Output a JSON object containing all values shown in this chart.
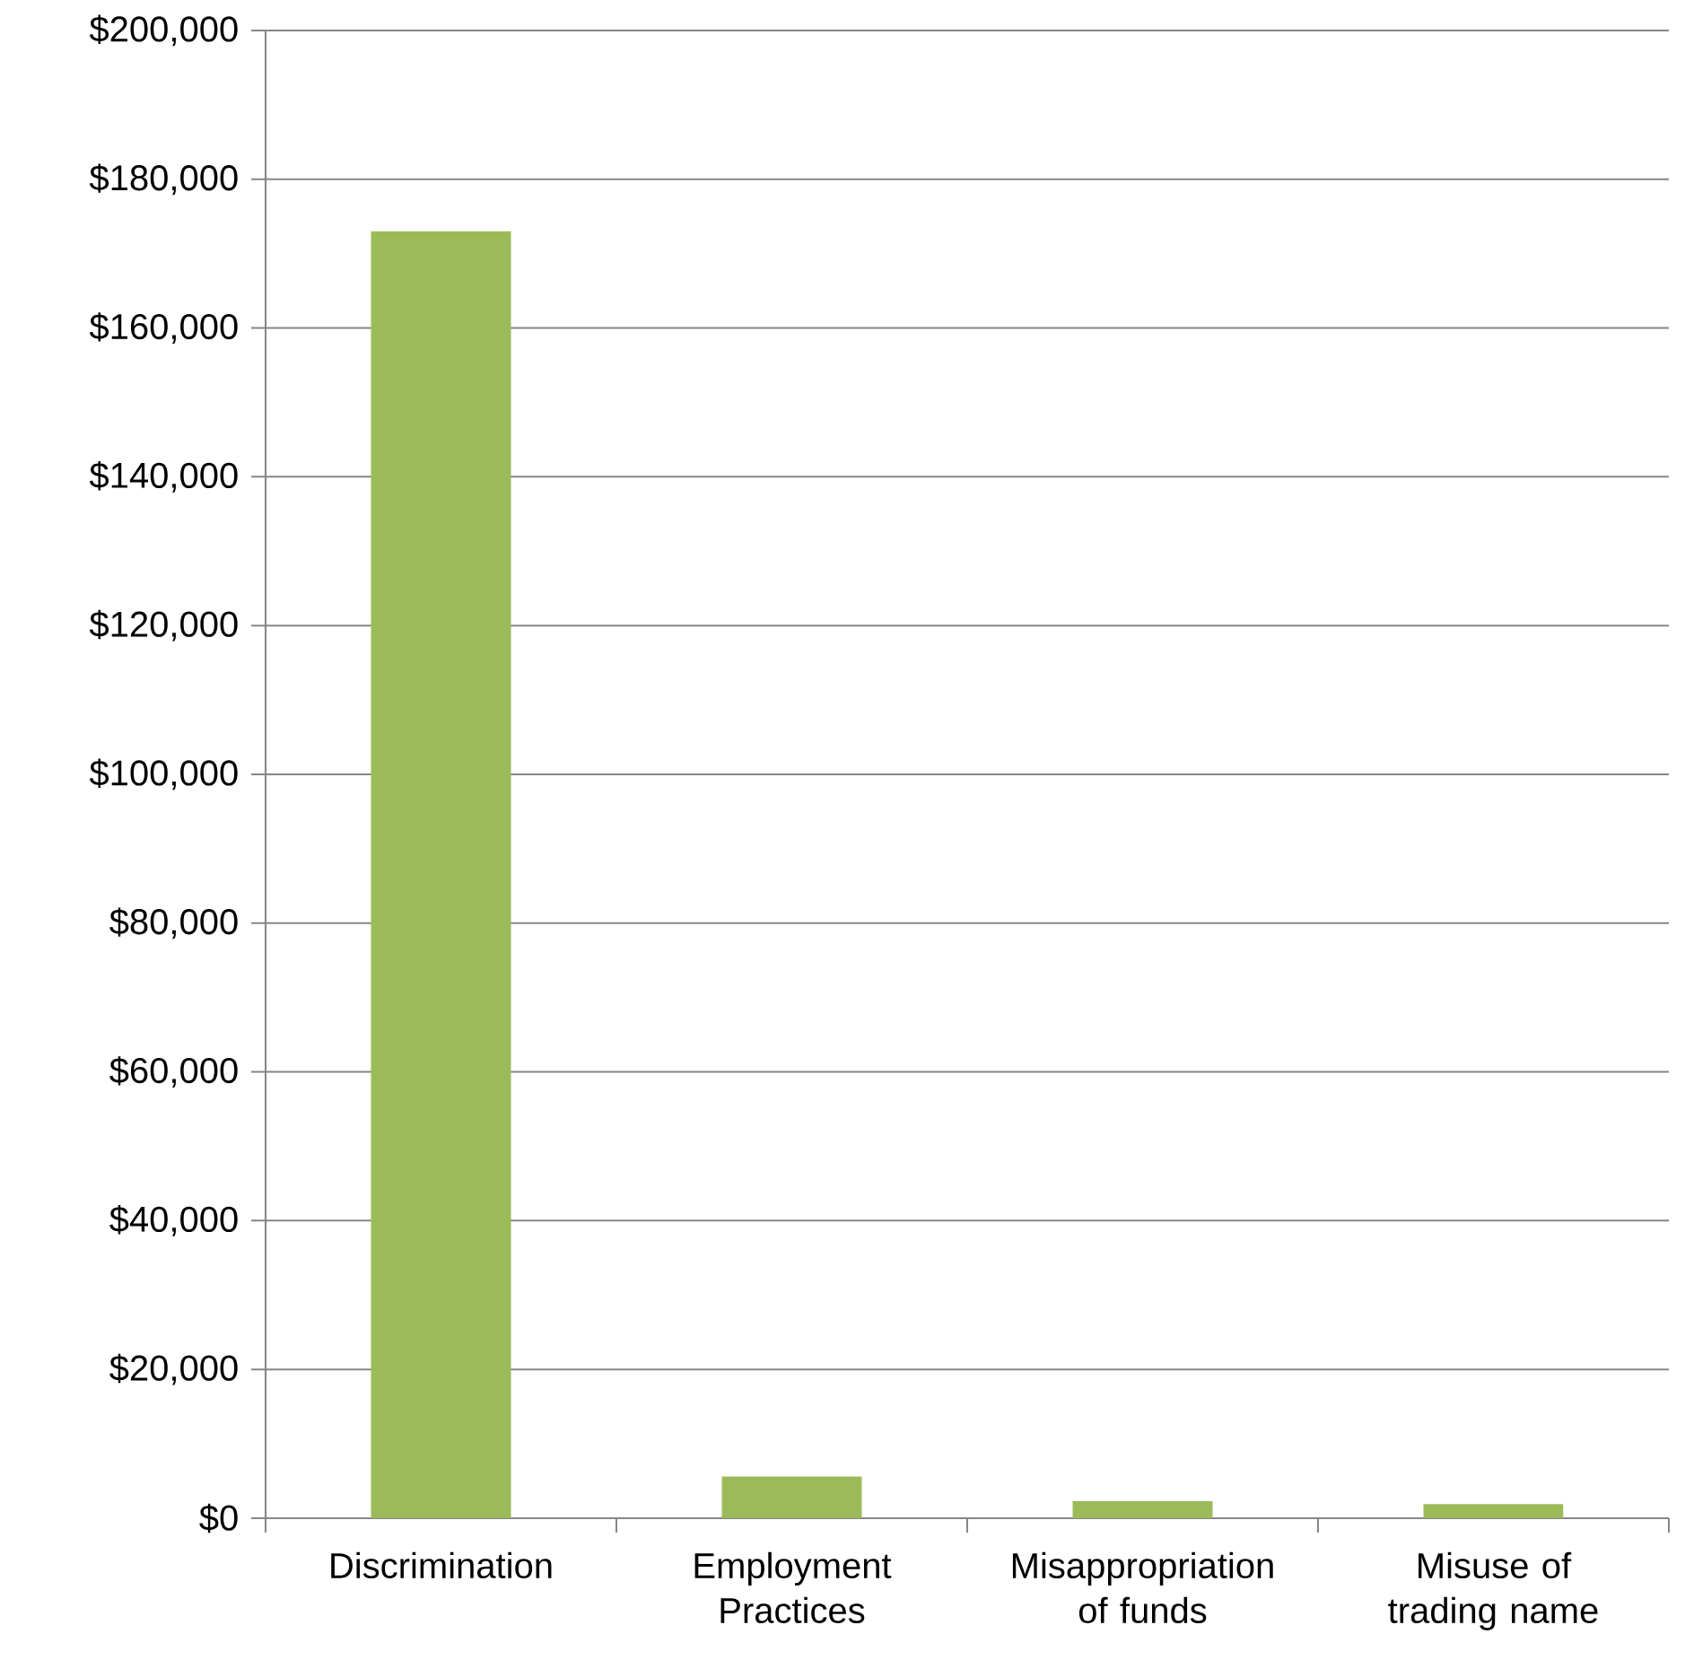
{
  "chart_data": {
    "type": "bar",
    "categories": [
      "Discrimination",
      "Employment Practices",
      "Misappropriation of funds",
      "Misuse of trading name"
    ],
    "values": [
      173000,
      5600,
      2300,
      1900
    ],
    "color": "#9bbb59",
    "ylim": [
      0,
      200000
    ],
    "yticks": [
      {
        "value": 0,
        "label": "$0"
      },
      {
        "value": 20000,
        "label": "$20,000"
      },
      {
        "value": 40000,
        "label": "$40,000"
      },
      {
        "value": 60000,
        "label": "$60,000"
      },
      {
        "value": 80000,
        "label": "$80,000"
      },
      {
        "value": 100000,
        "label": "$100,000"
      },
      {
        "value": 120000,
        "label": "$120,000"
      },
      {
        "value": 140000,
        "label": "$140,000"
      },
      {
        "value": 160000,
        "label": "$160,000"
      },
      {
        "value": 180000,
        "label": "$180,000"
      },
      {
        "value": 200000,
        "label": "$200,000"
      }
    ],
    "grid": "y"
  }
}
